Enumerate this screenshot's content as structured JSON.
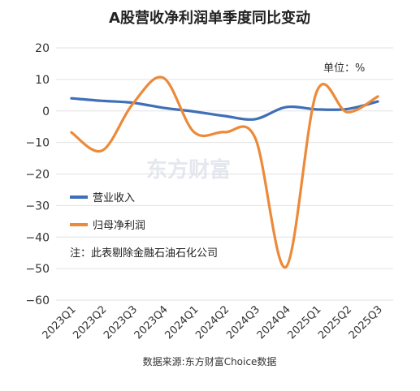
{
  "chart_data": {
    "type": "line",
    "title": "A股营收净利润单季度同比变动",
    "unit_note": "单位：%",
    "note": "注：此表剔除金融石油石化公司",
    "source": "数据来源:东方财富Choice数据",
    "watermark": "东方财富",
    "xlabel": "",
    "ylabel": "",
    "categories": [
      "2023Q1",
      "2023Q2",
      "2023Q3",
      "2023Q4",
      "2024Q1",
      "2024Q2",
      "2024Q3",
      "2024Q4",
      "2025Q1",
      "2025Q2",
      "2025Q3"
    ],
    "ylim": [
      -60,
      20
    ],
    "yticks": [
      20,
      10,
      0,
      -10,
      -20,
      -30,
      -40,
      -50,
      -60
    ],
    "ytick_labels": [
      "20",
      "10",
      "0",
      "−10",
      "−20",
      "−30",
      "−40",
      "−50",
      "−60"
    ],
    "grid": true,
    "legend_position": "center-left",
    "series": [
      {
        "name": "营业收入",
        "color": "#3f6fb6",
        "values": [
          4.0,
          3.2,
          2.6,
          1.0,
          -0.2,
          -1.6,
          -2.6,
          1.2,
          0.5,
          0.6,
          3.0
        ]
      },
      {
        "name": "归母净利润",
        "color": "#ec8a3a",
        "values": [
          -6.8,
          -12.6,
          2.2,
          10.5,
          -6.7,
          -6.7,
          -8.6,
          -49.5,
          6.0,
          -0.4,
          4.6
        ]
      }
    ]
  }
}
